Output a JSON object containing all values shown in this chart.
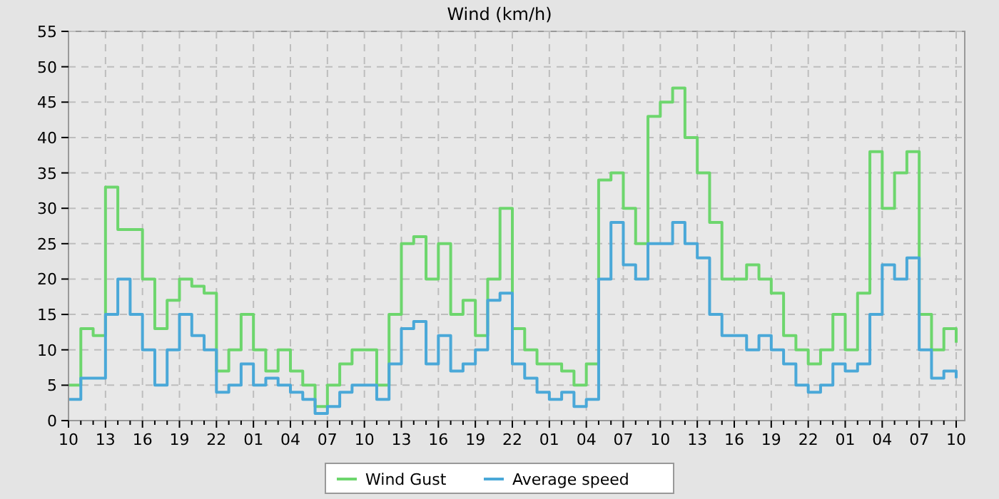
{
  "chart_data": {
    "type": "step",
    "title": "Wind (km/h)",
    "categories": [
      "10",
      null,
      null,
      "13",
      null,
      null,
      "16",
      null,
      null,
      "19",
      null,
      null,
      "22",
      null,
      null,
      "01",
      null,
      null,
      "04",
      null,
      null,
      "07",
      null,
      null,
      "10",
      null,
      null,
      "13",
      null,
      null,
      "16",
      null,
      null,
      "19",
      null,
      null,
      "22",
      null,
      null,
      "01",
      null,
      null,
      "04",
      null,
      null,
      "07",
      null,
      null,
      "10",
      null,
      null,
      "13",
      null,
      null,
      "16",
      null,
      null,
      "19",
      null,
      null,
      "22",
      null,
      null,
      "01",
      null,
      null,
      "04",
      null,
      null,
      "07",
      null,
      null,
      "10"
    ],
    "series": [
      {
        "name": "Wind Gust",
        "color": "#6dd66d",
        "values": [
          5,
          13,
          12,
          33,
          27,
          27,
          20,
          13,
          17,
          20,
          19,
          18,
          7,
          10,
          15,
          10,
          7,
          10,
          7,
          5,
          2,
          5,
          8,
          10,
          10,
          5,
          15,
          25,
          26,
          20,
          25,
          15,
          17,
          12,
          20,
          30,
          13,
          10,
          8,
          8,
          7,
          5,
          8,
          34,
          35,
          30,
          25,
          43,
          45,
          47,
          40,
          35,
          28,
          20,
          20,
          22,
          20,
          18,
          12,
          10,
          8,
          10,
          15,
          10,
          18,
          38,
          30,
          35,
          38,
          15,
          10,
          13,
          11
        ]
      },
      {
        "name": "Average speed",
        "color": "#4aa8d8",
        "values": [
          3,
          6,
          6,
          15,
          20,
          15,
          10,
          5,
          10,
          15,
          12,
          10,
          4,
          5,
          8,
          5,
          6,
          5,
          4,
          3,
          1,
          2,
          4,
          5,
          5,
          3,
          8,
          13,
          14,
          8,
          12,
          7,
          8,
          10,
          17,
          18,
          8,
          6,
          4,
          3,
          4,
          2,
          3,
          20,
          28,
          22,
          20,
          25,
          25,
          28,
          25,
          23,
          15,
          12,
          12,
          10,
          12,
          10,
          8,
          5,
          4,
          5,
          8,
          7,
          8,
          15,
          22,
          20,
          23,
          10,
          6,
          7,
          6
        ]
      }
    ],
    "ylim": [
      0,
      55
    ],
    "yticks": [
      0,
      5,
      10,
      15,
      20,
      25,
      30,
      35,
      40,
      45,
      50,
      55
    ],
    "grid": true,
    "line_style": "solid",
    "legend": "bottom"
  }
}
